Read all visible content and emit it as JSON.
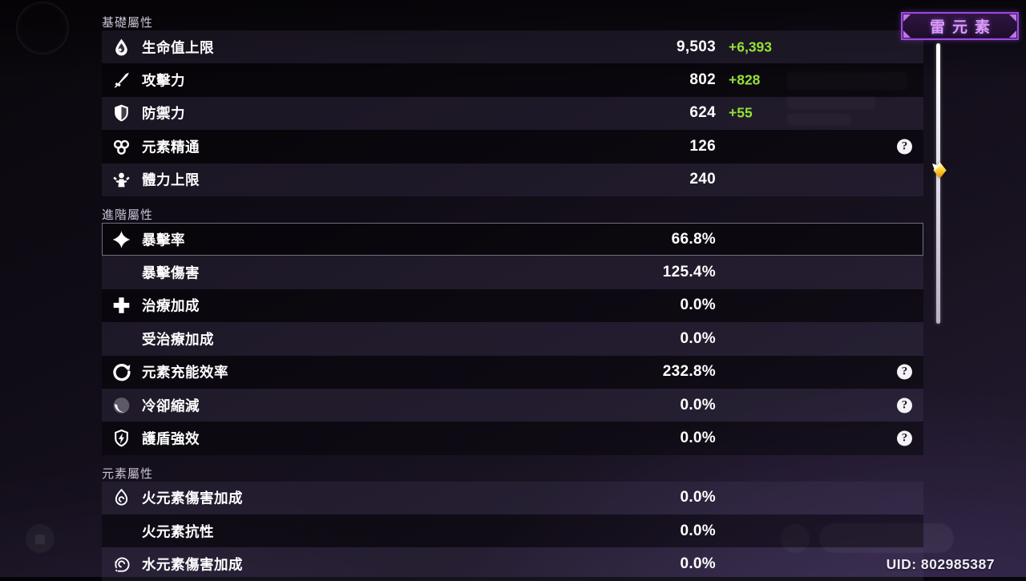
{
  "element_badge": {
    "label": "雷元素"
  },
  "uid": {
    "text": "UID: 802985387"
  },
  "icons": {
    "help_glyph": "?"
  },
  "colors": {
    "bonus_green": "#94e036",
    "badge_border": "#9b4ae0",
    "badge_text": "#d99bf8"
  },
  "sections": [
    {
      "id": "basic",
      "title": "基礎屬性",
      "rows": [
        {
          "id": "max-hp",
          "icon": "hp-icon",
          "label": "生命值上限",
          "value": "9,503",
          "bonus": "+6,393"
        },
        {
          "id": "atk",
          "icon": "sword-icon",
          "label": "攻擊力",
          "value": "802",
          "bonus": "+828"
        },
        {
          "id": "def",
          "icon": "shield-icon",
          "label": "防禦力",
          "value": "624",
          "bonus": "+55"
        },
        {
          "id": "elemental-mastery",
          "icon": "elemental-mastery-icon",
          "label": "元素精通",
          "value": "126",
          "help": true
        },
        {
          "id": "max-stamina",
          "icon": "stamina-icon",
          "label": "體力上限",
          "value": "240"
        }
      ]
    },
    {
      "id": "advanced",
      "title": "進階屬性",
      "rows": [
        {
          "id": "crit-rate",
          "icon": "crit-star-icon",
          "label": "暴擊率",
          "value": "66.8%",
          "selected": true
        },
        {
          "id": "crit-dmg",
          "label": "暴擊傷害",
          "value": "125.4%"
        },
        {
          "id": "healing-bonus",
          "icon": "healing-cross-icon",
          "label": "治療加成",
          "value": "0.0%"
        },
        {
          "id": "incoming-healing-bonus",
          "label": "受治療加成",
          "value": "0.0%"
        },
        {
          "id": "energy-recharge",
          "icon": "energy-recharge-icon",
          "label": "元素充能效率",
          "value": "232.8%",
          "help": true
        },
        {
          "id": "cd-reduction",
          "icon": "cooldown-moon-icon",
          "label": "冷卻縮減",
          "value": "0.0%",
          "help": true
        },
        {
          "id": "shield-strength",
          "icon": "shield-bolt-icon",
          "label": "護盾強效",
          "value": "0.0%",
          "help": true
        }
      ]
    },
    {
      "id": "elemental",
      "title": "元素屬性",
      "rows": [
        {
          "id": "pyro-dmg-bonus",
          "icon": "pyro-icon",
          "label": "火元素傷害加成",
          "value": "0.0%"
        },
        {
          "id": "pyro-res",
          "label": "火元素抗性",
          "value": "0.0%"
        },
        {
          "id": "hydro-dmg-bonus",
          "icon": "hydro-icon",
          "label": "水元素傷害加成",
          "value": "0.0%"
        }
      ]
    }
  ]
}
